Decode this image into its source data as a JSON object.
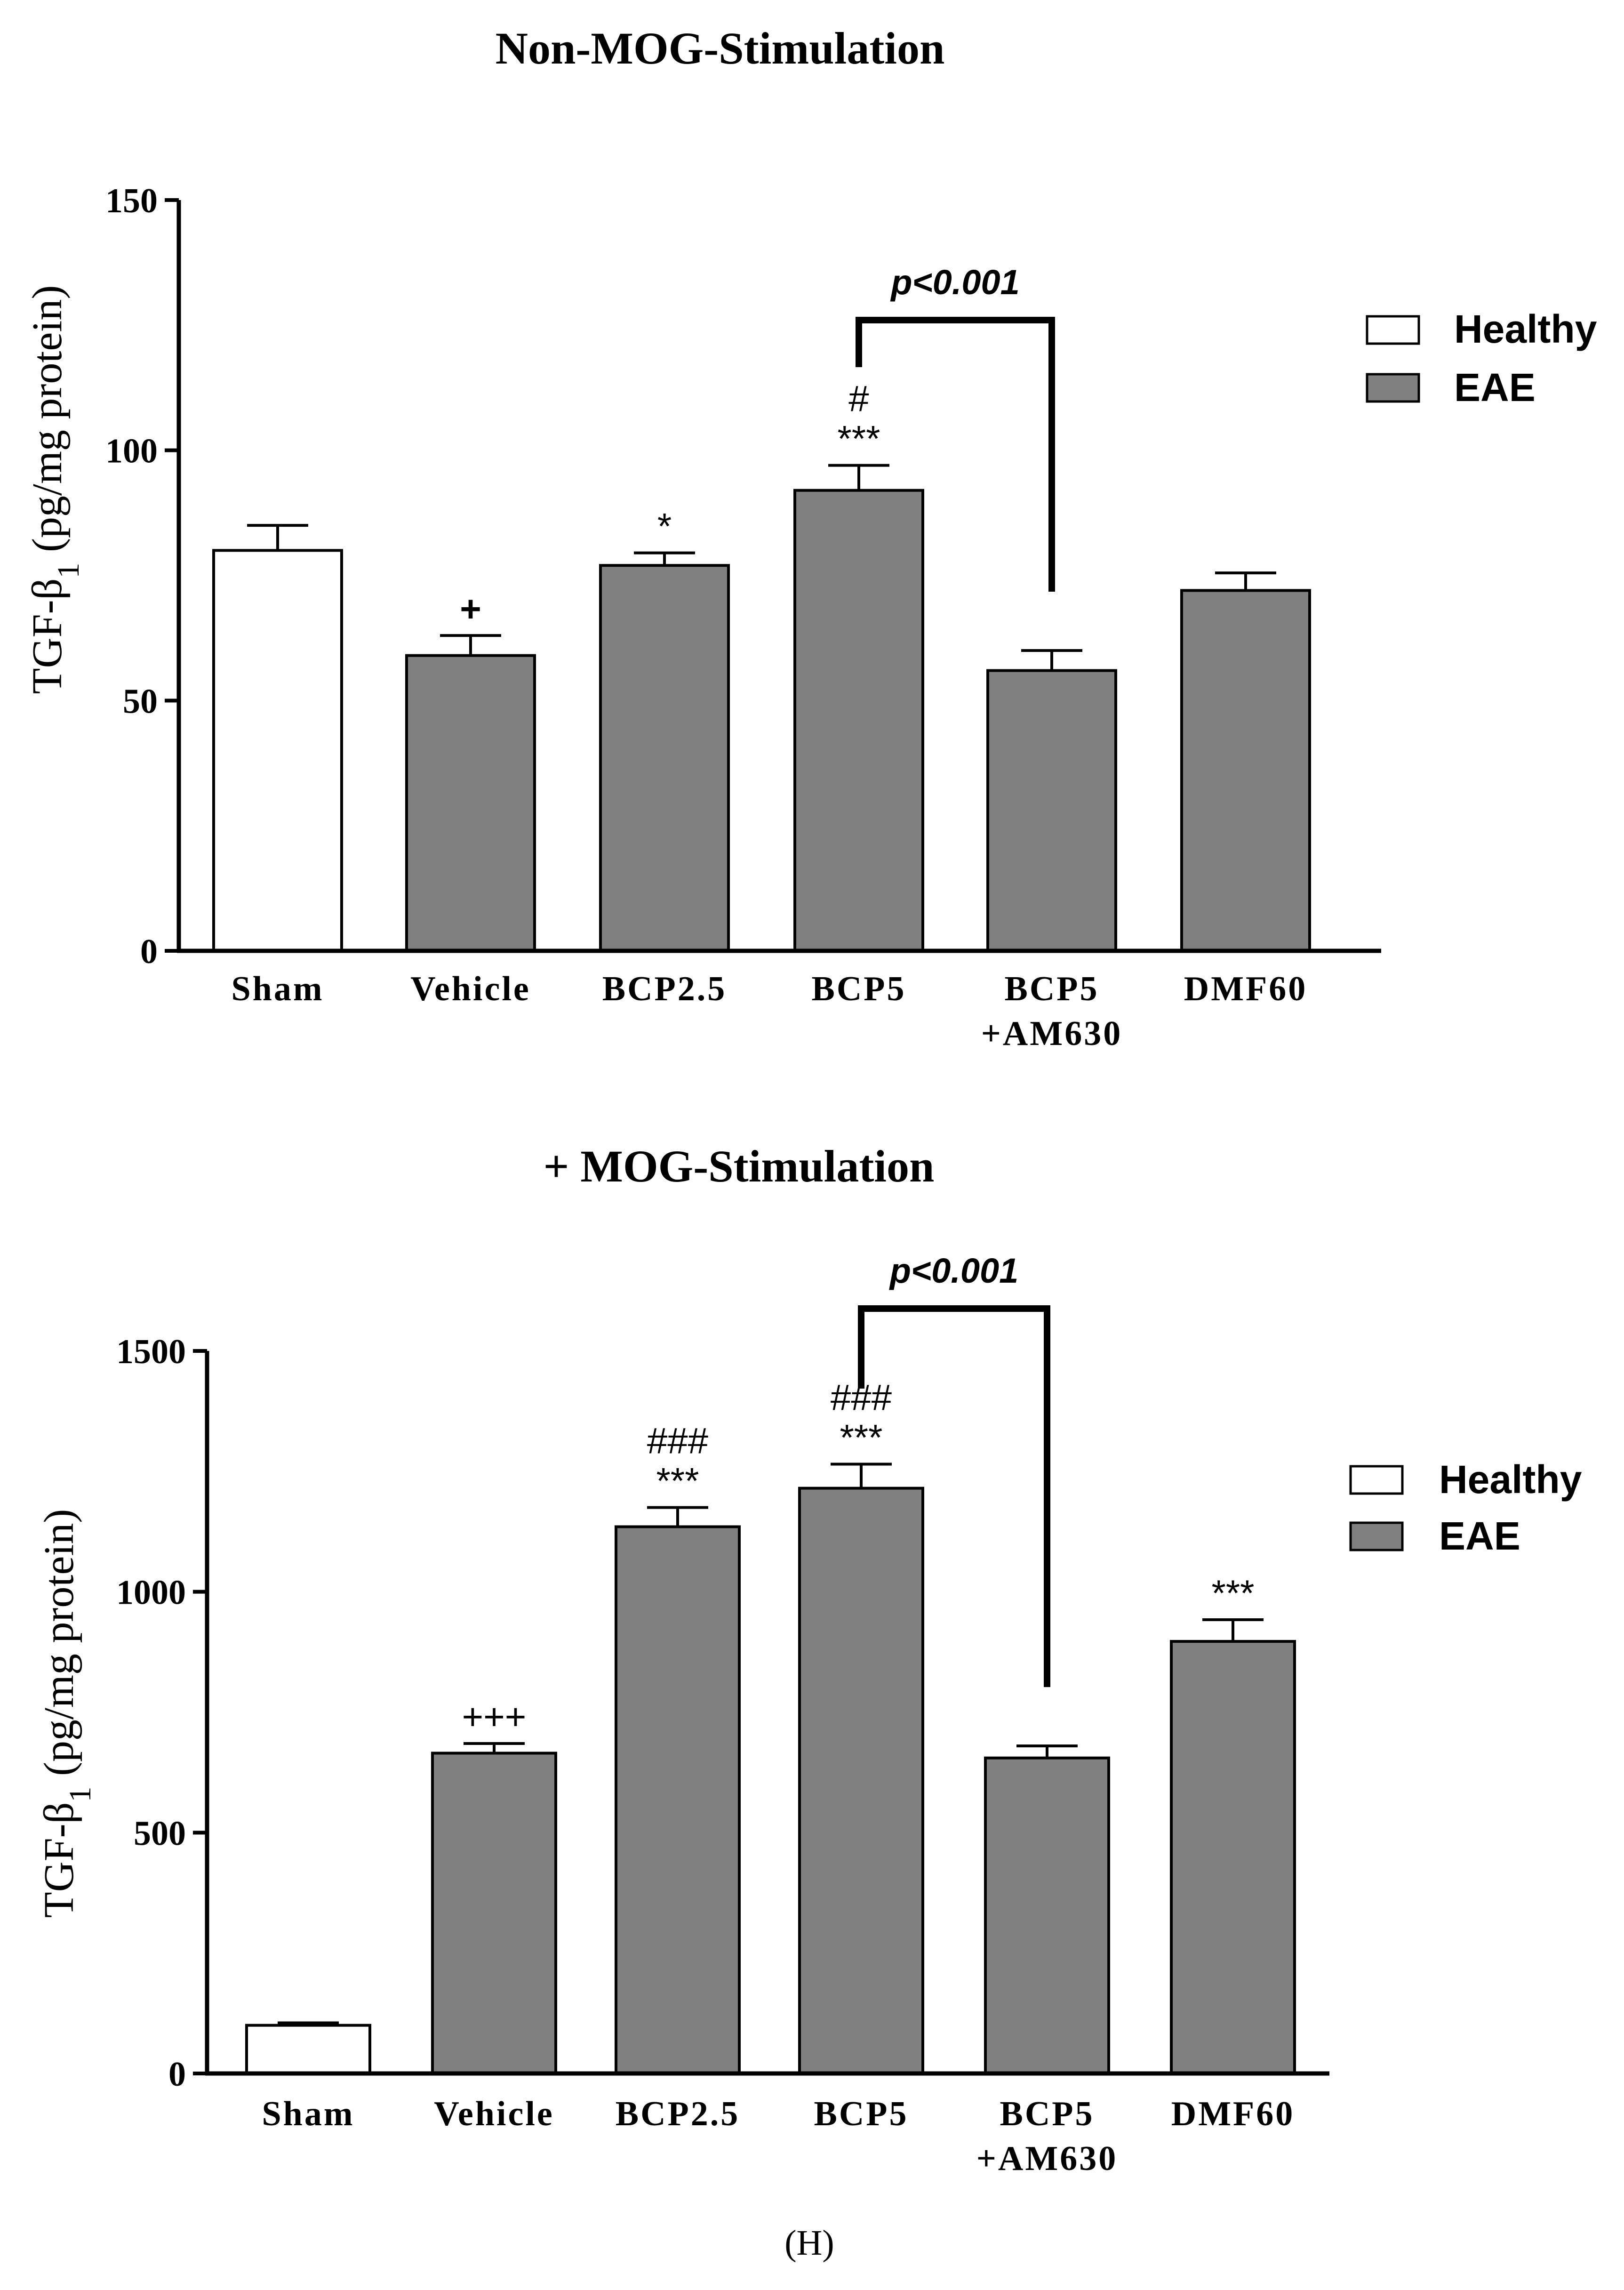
{
  "figure_label": "(H)",
  "chart_data": [
    {
      "type": "bar",
      "title": "Non-MOG-Stimulation",
      "ylabel_main": "TGF-β",
      "ylabel_sub": "1",
      "ylabel_rest": " (pg/mg protein)",
      "xlabel": "",
      "ylim": [
        0,
        150
      ],
      "yticks": [
        0,
        50,
        100,
        150
      ],
      "categories": [
        {
          "line1": "Sham",
          "line2": ""
        },
        {
          "line1": "Vehicle",
          "line2": ""
        },
        {
          "line1": "BCP2.5",
          "line2": ""
        },
        {
          "line1": "BCP5",
          "line2": ""
        },
        {
          "line1": "BCP5",
          "line2": "+AM630"
        },
        {
          "line1": "DMF60",
          "line2": ""
        }
      ],
      "values": [
        80,
        59,
        77,
        92,
        56,
        72
      ],
      "errors": [
        5,
        4,
        2.5,
        5,
        4,
        3.5
      ],
      "groups": [
        "Healthy",
        "EAE",
        "EAE",
        "EAE",
        "EAE",
        "EAE"
      ],
      "annotations": [
        {
          "line1": "",
          "line2": ""
        },
        {
          "line1": "",
          "line2": "+"
        },
        {
          "line1": "",
          "line2": "*"
        },
        {
          "line1": "#",
          "line2": "***"
        },
        {
          "line1": "",
          "line2": ""
        },
        {
          "line1": "",
          "line2": ""
        }
      ],
      "bracket": {
        "from": 3,
        "to": 4,
        "label": "p<0.001"
      },
      "legend": [
        {
          "label": "Healthy",
          "color": "#ffffff"
        },
        {
          "label": "EAE",
          "color": "#808080"
        }
      ],
      "legend_position": "top-right"
    },
    {
      "type": "bar",
      "title": "+ MOG-Stimulation",
      "ylabel_main": "TGF-β",
      "ylabel_sub": "1",
      "ylabel_rest": " (pg/mg protein)",
      "xlabel": "",
      "ylim": [
        0,
        1500
      ],
      "yticks": [
        0,
        500,
        1000,
        1500
      ],
      "categories": [
        {
          "line1": "Sham",
          "line2": ""
        },
        {
          "line1": "Vehicle",
          "line2": ""
        },
        {
          "line1": "BCP2.5",
          "line2": ""
        },
        {
          "line1": "BCP5",
          "line2": ""
        },
        {
          "line1": "BCP5",
          "line2": "+AM630"
        },
        {
          "line1": "DMF60",
          "line2": ""
        }
      ],
      "values": [
        100,
        665,
        1135,
        1215,
        655,
        897
      ],
      "errors": [
        5,
        20,
        40,
        50,
        25,
        45
      ],
      "groups": [
        "Healthy",
        "EAE",
        "EAE",
        "EAE",
        "EAE",
        "EAE"
      ],
      "annotations": [
        {
          "line1": "",
          "line2": ""
        },
        {
          "line1": "",
          "line2": "+++"
        },
        {
          "line1": "###",
          "line2": "***"
        },
        {
          "line1": "###",
          "line2": "***"
        },
        {
          "line1": "",
          "line2": ""
        },
        {
          "line1": "",
          "line2": "***"
        }
      ],
      "bracket": {
        "from": 3,
        "to": 4,
        "label": "p<0.001"
      },
      "legend": [
        {
          "label": "Healthy",
          "color": "#ffffff"
        },
        {
          "label": "EAE",
          "color": "#808080"
        }
      ],
      "legend_position": "top-right"
    }
  ]
}
